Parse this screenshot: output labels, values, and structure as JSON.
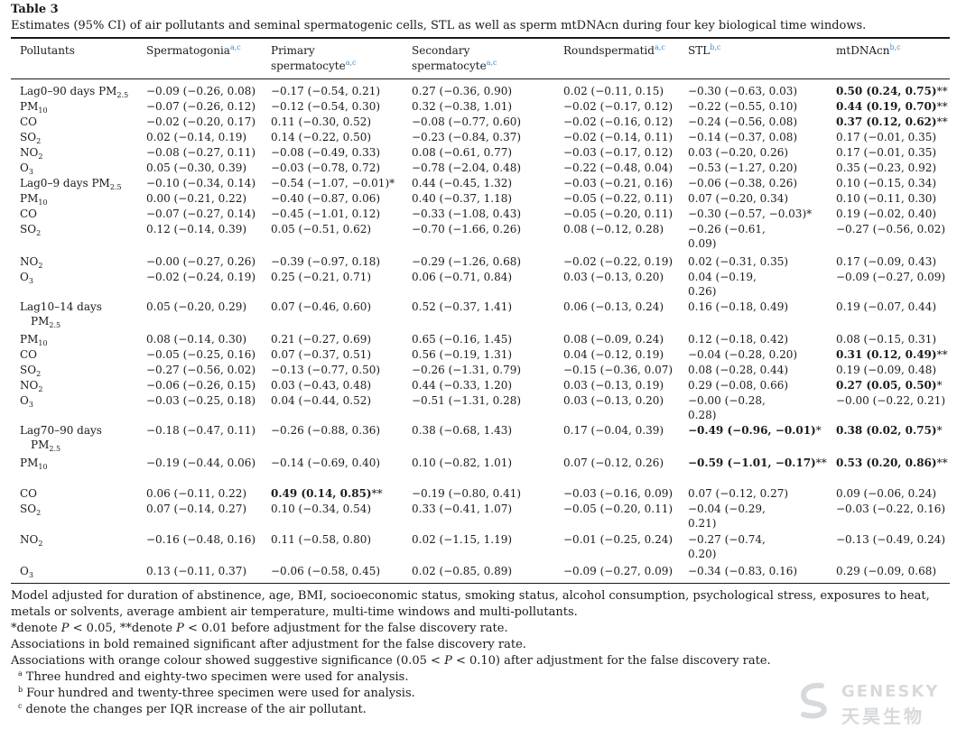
{
  "table": {
    "label": "Table 3",
    "caption": "Estimates (95% CI) of air pollutants and seminal spermatogenic cells, STL as well as sperm mtDNAcn during four key biological time windows.",
    "headers": [
      {
        "text": "Pollutants",
        "sup": ""
      },
      {
        "text": "Spermatogonia",
        "sup": "a,c"
      },
      {
        "text": "Primary spermatocyte",
        "sup": "a,c"
      },
      {
        "text": "Secondary spermatocyte",
        "sup": "a,c"
      },
      {
        "text": "Roundspermatid",
        "sup": "a,c"
      },
      {
        "text": "STL",
        "sup": "b,c"
      },
      {
        "text": "mtDNAcn",
        "sup": "b,c"
      }
    ],
    "rows": [
      {
        "pollutant": "Lag0–90 days PM2.5",
        "cells": [
          {
            "t": "−0.09 (−0.26, 0.08)"
          },
          {
            "t": "−0.17 (−0.54, 0.21)"
          },
          {
            "t": "0.27 (−0.36, 0.90)"
          },
          {
            "t": "0.02 (−0.11, 0.15)"
          },
          {
            "t": "−0.30 (−0.63, 0.03)"
          },
          {
            "t": "0.50 (0.24, 0.75)",
            "b": true,
            "s": "**"
          }
        ]
      },
      {
        "pollutant": "PM10",
        "cells": [
          {
            "t": "−0.07 (−0.26, 0.12)"
          },
          {
            "t": "−0.12 (−0.54, 0.30)"
          },
          {
            "t": "0.32 (−0.38, 1.01)"
          },
          {
            "t": "−0.02 (−0.17, 0.12)"
          },
          {
            "t": "−0.22 (−0.55, 0.10)"
          },
          {
            "t": "0.44 (0.19, 0.70)",
            "b": true,
            "s": "**"
          }
        ]
      },
      {
        "pollutant": "CO",
        "cells": [
          {
            "t": "−0.02 (−0.20, 0.17)"
          },
          {
            "t": "0.11 (−0.30, 0.52)"
          },
          {
            "t": "−0.08 (−0.77, 0.60)"
          },
          {
            "t": "−0.02 (−0.16, 0.12)"
          },
          {
            "t": "−0.24 (−0.56, 0.08)"
          },
          {
            "t": "0.37 (0.12, 0.62)",
            "b": true,
            "s": "**"
          }
        ]
      },
      {
        "pollutant": "SO2",
        "cells": [
          {
            "t": "0.02 (−0.14, 0.19)"
          },
          {
            "t": "0.14 (−0.22, 0.50)"
          },
          {
            "t": "−0.23 (−0.84, 0.37)"
          },
          {
            "t": "−0.02 (−0.14, 0.11)"
          },
          {
            "t": "−0.14 (−0.37, 0.08)"
          },
          {
            "t": "0.17 (−0.01, 0.35)"
          }
        ]
      },
      {
        "pollutant": "NO2",
        "cells": [
          {
            "t": "−0.08 (−0.27, 0.11)"
          },
          {
            "t": "−0.08 (−0.49, 0.33)"
          },
          {
            "t": "0.08 (−0.61, 0.77)"
          },
          {
            "t": "−0.03 (−0.17, 0.12)"
          },
          {
            "t": "0.03 (−0.20, 0.26)"
          },
          {
            "t": "0.17 (−0.01, 0.35)"
          }
        ]
      },
      {
        "pollutant": "O3",
        "cells": [
          {
            "t": "0.05 (−0.30, 0.39)"
          },
          {
            "t": "−0.03 (−0.78, 0.72)"
          },
          {
            "t": "−0.78 (−2.04, 0.48)"
          },
          {
            "t": "−0.22 (−0.48, 0.04)"
          },
          {
            "t": "−0.53 (−1.27, 0.20)"
          },
          {
            "t": "0.35 (−0.23, 0.92)"
          }
        ]
      },
      {
        "pollutant": "Lag0–9 days PM2.5",
        "cells": [
          {
            "t": "−0.10 (−0.34, 0.14)"
          },
          {
            "t": "−0.54 (−1.07, −0.01)",
            "s": "*"
          },
          {
            "t": "0.44 (−0.45, 1.32)"
          },
          {
            "t": "−0.03 (−0.21, 0.16)"
          },
          {
            "t": "−0.06 (−0.38, 0.26)"
          },
          {
            "t": "0.10 (−0.15, 0.34)"
          }
        ]
      },
      {
        "pollutant": "PM10",
        "cells": [
          {
            "t": "0.00 (−0.21, 0.22)"
          },
          {
            "t": "−0.40 (−0.87, 0.06)"
          },
          {
            "t": "0.40 (−0.37, 1.18)"
          },
          {
            "t": "−0.05 (−0.22, 0.11)"
          },
          {
            "t": "0.07 (−0.20, 0.34)"
          },
          {
            "t": "0.10 (−0.11, 0.30)"
          }
        ]
      },
      {
        "pollutant": "CO",
        "cells": [
          {
            "t": "−0.07 (−0.27, 0.14)"
          },
          {
            "t": "−0.45 (−1.01, 0.12)"
          },
          {
            "t": "−0.33 (−1.08, 0.43)"
          },
          {
            "t": "−0.05 (−0.20, 0.11)"
          },
          {
            "t": "−0.30 (−0.57, −0.03)",
            "s": "*"
          },
          {
            "t": "0.19 (−0.02, 0.40)"
          }
        ]
      },
      {
        "pollutant": "SO2",
        "cells": [
          {
            "t": "0.12 (−0.14, 0.39)"
          },
          {
            "t": "0.05 (−0.51, 0.62)"
          },
          {
            "t": "−0.70 (−1.66, 0.26)"
          },
          {
            "t": "0.08 (−0.12, 0.28)"
          },
          {
            "t": "−0.26 (−0.61, 0.09)"
          },
          {
            "t": "−0.27 (−0.56, 0.02)"
          }
        ]
      },
      {
        "pollutant": "NO2",
        "cells": [
          {
            "t": "−0.00 (−0.27, 0.26)"
          },
          {
            "t": "−0.39 (−0.97, 0.18)"
          },
          {
            "t": "−0.29 (−1.26, 0.68)"
          },
          {
            "t": "−0.02 (−0.22, 0.19)"
          },
          {
            "t": "0.02 (−0.31, 0.35)"
          },
          {
            "t": "0.17 (−0.09, 0.43)"
          }
        ]
      },
      {
        "pollutant": "O3",
        "cells": [
          {
            "t": "−0.02 (−0.24, 0.19)"
          },
          {
            "t": "0.25 (−0.21, 0.71)"
          },
          {
            "t": "0.06 (−0.71, 0.84)"
          },
          {
            "t": "0.03 (−0.13, 0.20)"
          },
          {
            "t": "0.04 (−0.19, 0.26)"
          },
          {
            "t": "−0.09 (−0.27, 0.09)"
          }
        ]
      },
      {
        "pollutant": "Lag10–14 days PM2.5",
        "cells": [
          {
            "t": "0.05 (−0.20, 0.29)"
          },
          {
            "t": "0.07 (−0.46, 0.60)"
          },
          {
            "t": "0.52 (−0.37, 1.41)"
          },
          {
            "t": "0.06 (−0.13, 0.24)"
          },
          {
            "t": "0.16 (−0.18, 0.49)"
          },
          {
            "t": "0.19 (−0.07, 0.44)"
          }
        ]
      },
      {
        "pollutant": "PM10",
        "cells": [
          {
            "t": "0.08 (−0.14, 0.30)"
          },
          {
            "t": "0.21 (−0.27, 0.69)"
          },
          {
            "t": "0.65 (−0.16, 1.45)"
          },
          {
            "t": "0.08 (−0.09, 0.24)"
          },
          {
            "t": "0.12 (−0.18, 0.42)"
          },
          {
            "t": "0.08 (−0.15, 0.31)"
          }
        ]
      },
      {
        "pollutant": "CO",
        "cells": [
          {
            "t": "−0.05 (−0.25, 0.16)"
          },
          {
            "t": "0.07 (−0.37, 0.51)"
          },
          {
            "t": "0.56 (−0.19, 1.31)"
          },
          {
            "t": "0.04 (−0.12, 0.19)"
          },
          {
            "t": "−0.04 (−0.28, 0.20)"
          },
          {
            "t": "0.31 (0.12, 0.49)",
            "b": true,
            "s": "**"
          }
        ]
      },
      {
        "pollutant": "SO2",
        "cells": [
          {
            "t": "−0.27 (−0.56, 0.02)"
          },
          {
            "t": "−0.13 (−0.77, 0.50)"
          },
          {
            "t": "−0.26 (−1.31, 0.79)"
          },
          {
            "t": "−0.15 (−0.36, 0.07)"
          },
          {
            "t": "0.08 (−0.28, 0.44)"
          },
          {
            "t": "0.19 (−0.09, 0.48)"
          }
        ]
      },
      {
        "pollutant": "NO2",
        "cells": [
          {
            "t": "−0.06 (−0.26, 0.15)"
          },
          {
            "t": "0.03 (−0.43, 0.48)"
          },
          {
            "t": "0.44 (−0.33, 1.20)"
          },
          {
            "t": "0.03 (−0.13, 0.19)"
          },
          {
            "t": "0.29 (−0.08, 0.66)"
          },
          {
            "t": "0.27 (0.05, 0.50)",
            "b": true,
            "s": "*"
          }
        ]
      },
      {
        "pollutant": "O3",
        "cells": [
          {
            "t": "−0.03 (−0.25, 0.18)"
          },
          {
            "t": "0.04 (−0.44, 0.52)"
          },
          {
            "t": "−0.51 (−1.31, 0.28)"
          },
          {
            "t": "0.03 (−0.13, 0.20)"
          },
          {
            "t": "−0.00 (−0.28, 0.28)"
          },
          {
            "t": "−0.00 (−0.22, 0.21)"
          }
        ]
      },
      {
        "pollutant": "Lag70–90 days PM2.5",
        "cells": [
          {
            "t": "−0.18 (−0.47, 0.11)"
          },
          {
            "t": "−0.26 (−0.88, 0.36)"
          },
          {
            "t": "0.38 (−0.68, 1.43)"
          },
          {
            "t": "0.17 (−0.04, 0.39)"
          },
          {
            "t": "−0.49 (−0.96, −0.01)",
            "b": true,
            "s": "*"
          },
          {
            "t": "0.38 (0.02, 0.75)",
            "b": true,
            "s": "*"
          }
        ]
      },
      {
        "pollutant": "PM10",
        "cells": [
          {
            "t": "−0.19 (−0.44, 0.06)"
          },
          {
            "t": "−0.14 (−0.69, 0.40)"
          },
          {
            "t": "0.10 (−0.82, 1.01)"
          },
          {
            "t": "0.07 (−0.12, 0.26)"
          },
          {
            "t": "−0.59 (−1.01, −0.17)",
            "b": true,
            "s": "**"
          },
          {
            "t": "0.53 (0.20, 0.86)",
            "b": true,
            "s": "**"
          }
        ]
      },
      {
        "pollutant": "CO",
        "cells": [
          {
            "t": "0.06 (−0.11, 0.22)"
          },
          {
            "t": "0.49 (0.14, 0.85)",
            "b": true,
            "s": "**"
          },
          {
            "t": "−0.19 (−0.80, 0.41)"
          },
          {
            "t": "−0.03 (−0.16, 0.09)"
          },
          {
            "t": "0.07 (−0.12, 0.27)"
          },
          {
            "t": "0.09 (−0.06, 0.24)"
          }
        ]
      },
      {
        "pollutant": "SO2",
        "cells": [
          {
            "t": "0.07 (−0.14, 0.27)"
          },
          {
            "t": "0.10 (−0.34, 0.54)"
          },
          {
            "t": "0.33 (−0.41, 1.07)"
          },
          {
            "t": "−0.05 (−0.20, 0.11)"
          },
          {
            "t": "−0.04 (−0.29, 0.21)"
          },
          {
            "t": "−0.03 (−0.22, 0.16)"
          }
        ]
      },
      {
        "pollutant": "NO2",
        "cells": [
          {
            "t": "−0.16 (−0.48, 0.16)"
          },
          {
            "t": "0.11 (−0.58, 0.80)"
          },
          {
            "t": "0.02 (−1.15, 1.19)"
          },
          {
            "t": "−0.01 (−0.25, 0.24)"
          },
          {
            "t": "−0.27 (−0.74, 0.20)"
          },
          {
            "t": "−0.13 (−0.49, 0.24)"
          }
        ]
      },
      {
        "pollutant": "O3",
        "cells": [
          {
            "t": "0.13 (−0.11, 0.37)"
          },
          {
            "t": "−0.06 (−0.58, 0.45)"
          },
          {
            "t": "0.02 (−0.85, 0.89)"
          },
          {
            "t": "−0.09 (−0.27, 0.09)"
          },
          {
            "t": "−0.34 (−0.83, 0.16)"
          },
          {
            "t": "0.29 (−0.09, 0.68)"
          }
        ]
      }
    ],
    "notes": [
      "Model adjusted for duration of abstinence, age, BMI, socioeconomic status, smoking status, alcohol consumption, psychological stress, exposures to heat, metals or solvents, average ambient air temperature, multi-time windows and multi-pollutants.",
      "*denote P < 0.05, **denote P < 0.01 before adjustment for the false discovery rate.",
      "Associations in bold remained significant after adjustment for the false discovery rate.",
      "Associations with orange colour showed suggestive significance (0.05 < P < 0.10) after adjustment for the false discovery rate."
    ],
    "footnotes": [
      {
        "mark": "a",
        "text": "Three hundred and eighty-two specimen were used for analysis."
      },
      {
        "mark": "b",
        "text": "Four hundred and twenty-three specimen were used for analysis."
      },
      {
        "mark": "c",
        "text": "denote the changes per IQR increase of the air pollutant."
      }
    ]
  },
  "watermark": {
    "brand": "GENESKY",
    "cn": "天昊生物"
  },
  "colors": {
    "footnote_link": "#3f88c5",
    "watermark": "#b8bcc2"
  }
}
